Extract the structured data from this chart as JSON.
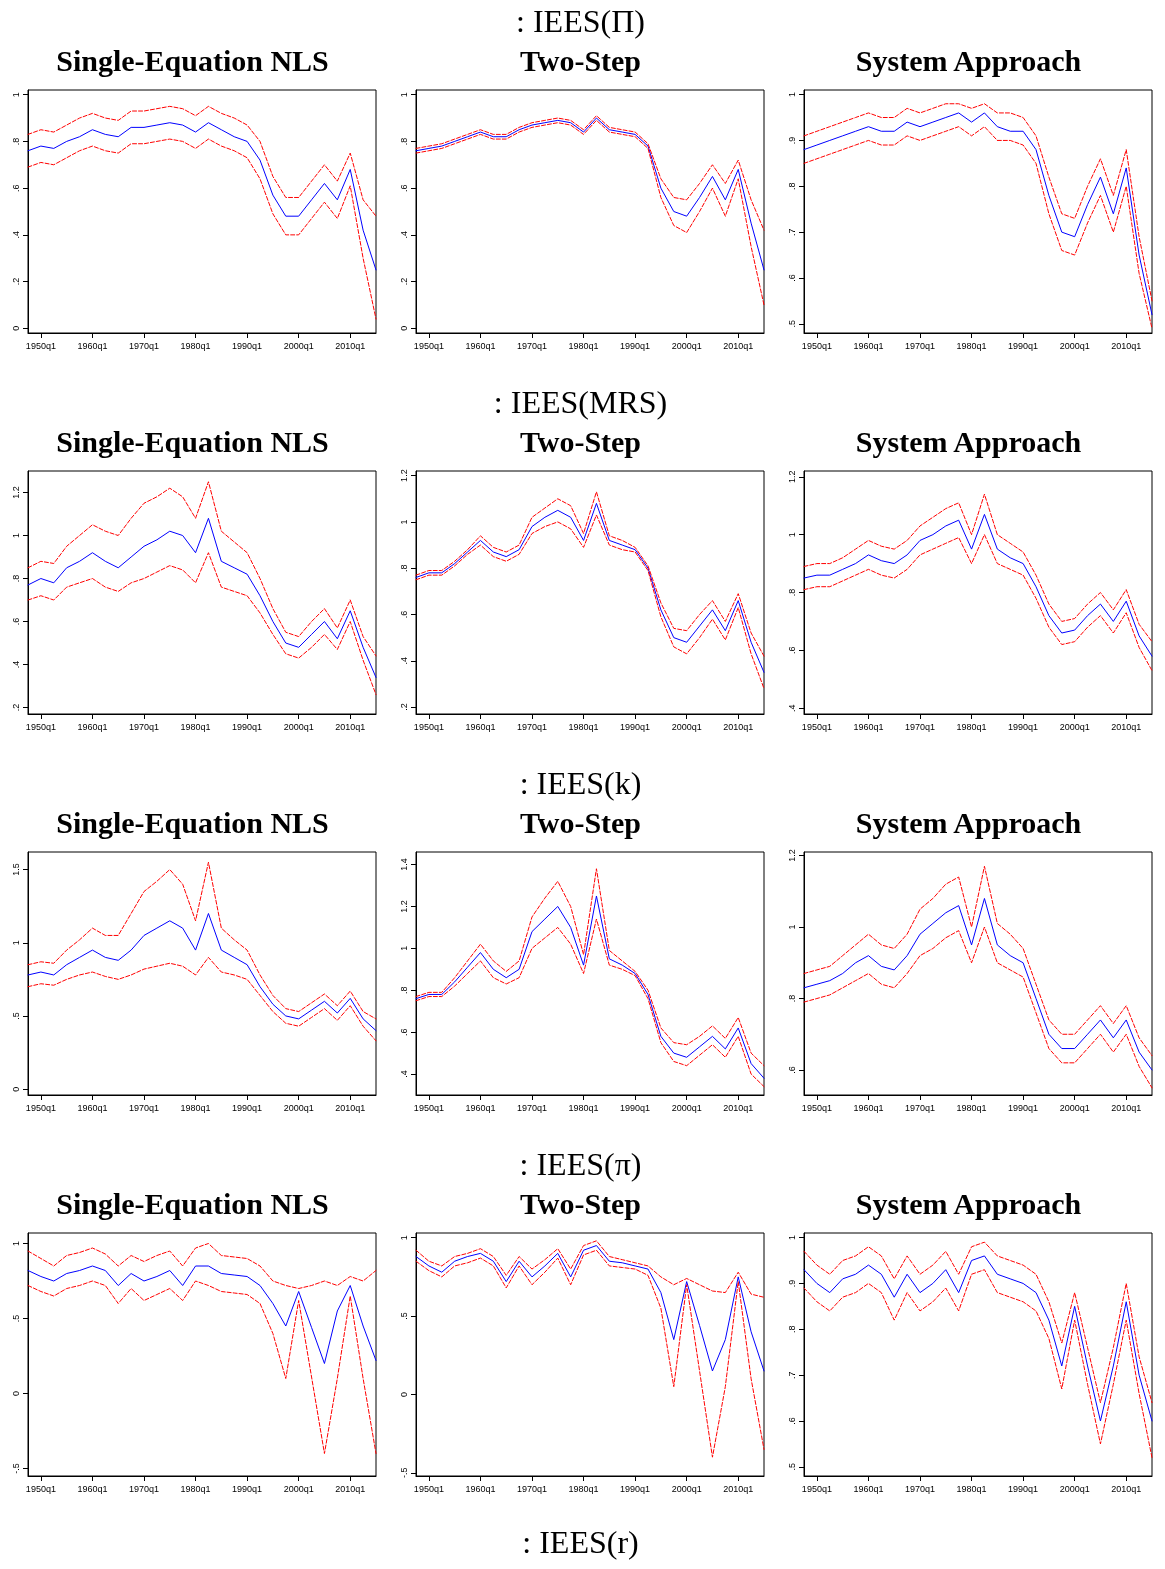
{
  "chart_data": [
    {
      "type": "line",
      "title": "Single-Equation NLS",
      "marker": "none",
      "grid": false,
      "ylim": [
        -0.02,
        1.02
      ],
      "categories": [
        null,
        "1950q1",
        null,
        null,
        null,
        "1960q1",
        null,
        null,
        null,
        "1970q1",
        null,
        null,
        null,
        "1980q1",
        null,
        null,
        null,
        "1990q1",
        null,
        null,
        null,
        "2000q1",
        null,
        null,
        null,
        "2010q1",
        null,
        null
      ],
      "yticks": [
        0,
        {
          "value": 0.2,
          "label": ".2"
        },
        {
          "value": 0.4,
          "label": ".4"
        },
        {
          "value": 0.6,
          "label": ".6"
        },
        {
          "value": 0.8,
          "label": ".8"
        },
        1
      ],
      "series": [
        {
          "color": "#0000ff",
          "line_style": "solid",
          "values": [
            0.76,
            0.78,
            0.77,
            0.8,
            0.82,
            0.85,
            0.83,
            0.82,
            0.86,
            0.86,
            0.87,
            0.88,
            0.87,
            0.84,
            0.88,
            0.85,
            0.82,
            0.8,
            0.72,
            0.57,
            0.48,
            0.48,
            0.55,
            0.62,
            0.55,
            0.68,
            0.42,
            0.25
          ]
        },
        {
          "color": "#ff0000",
          "line_style": "dashed",
          "values": [
            0.83,
            0.85,
            0.84,
            0.87,
            0.9,
            0.92,
            0.9,
            0.89,
            0.93,
            0.93,
            0.94,
            0.95,
            0.94,
            0.91,
            0.95,
            0.92,
            0.9,
            0.87,
            0.8,
            0.65,
            0.56,
            0.56,
            0.63,
            0.7,
            0.63,
            0.75,
            0.55,
            0.48
          ]
        },
        {
          "color": "#ff0000",
          "line_style": "dashed",
          "values": [
            0.69,
            0.71,
            0.7,
            0.73,
            0.76,
            0.78,
            0.76,
            0.75,
            0.79,
            0.79,
            0.8,
            0.81,
            0.8,
            0.77,
            0.81,
            0.78,
            0.76,
            0.73,
            0.64,
            0.49,
            0.4,
            0.4,
            0.47,
            0.54,
            0.47,
            0.61,
            0.3,
            0.04
          ]
        }
      ]
    },
    {
      "type": "line",
      "title": "Two-Step",
      "annotations": [
        ": IEES(Π)"
      ],
      "marker": "none",
      "grid": false,
      "ylim": [
        -0.02,
        1.02
      ],
      "categories": [
        null,
        "1950q1",
        null,
        null,
        null,
        "1960q1",
        null,
        null,
        null,
        "1970q1",
        null,
        null,
        null,
        "1980q1",
        null,
        null,
        null,
        "1990q1",
        null,
        null,
        null,
        "2000q1",
        null,
        null,
        null,
        "2010q1",
        null,
        null
      ],
      "yticks": [
        0,
        {
          "value": 0.2,
          "label": ".2"
        },
        {
          "value": 0.4,
          "label": ".4"
        },
        {
          "value": 0.6,
          "label": ".6"
        },
        {
          "value": 0.8,
          "label": ".8"
        },
        1
      ],
      "series": [
        {
          "color": "#0000ff",
          "line_style": "solid",
          "values": [
            0.76,
            0.77,
            0.78,
            0.8,
            0.82,
            0.84,
            0.82,
            0.82,
            0.85,
            0.87,
            0.88,
            0.89,
            0.88,
            0.84,
            0.9,
            0.85,
            0.84,
            0.83,
            0.78,
            0.6,
            0.5,
            0.48,
            0.56,
            0.65,
            0.55,
            0.68,
            0.45,
            0.25
          ]
        },
        {
          "color": "#ff0000",
          "line_style": "dashed",
          "values": [
            0.77,
            0.78,
            0.79,
            0.81,
            0.83,
            0.85,
            0.83,
            0.83,
            0.86,
            0.88,
            0.89,
            0.9,
            0.89,
            0.85,
            0.91,
            0.86,
            0.85,
            0.84,
            0.79,
            0.64,
            0.56,
            0.55,
            0.62,
            0.7,
            0.62,
            0.72,
            0.55,
            0.42
          ]
        },
        {
          "color": "#ff0000",
          "line_style": "dashed",
          "values": [
            0.75,
            0.76,
            0.77,
            0.79,
            0.81,
            0.83,
            0.81,
            0.81,
            0.84,
            0.86,
            0.87,
            0.88,
            0.87,
            0.83,
            0.89,
            0.84,
            0.83,
            0.82,
            0.77,
            0.56,
            0.44,
            0.41,
            0.5,
            0.6,
            0.48,
            0.64,
            0.35,
            0.1
          ]
        }
      ]
    },
    {
      "type": "line",
      "title": "System Approach",
      "marker": "none",
      "grid": false,
      "ylim": [
        0.48,
        1.01
      ],
      "categories": [
        null,
        "1950q1",
        null,
        null,
        null,
        "1960q1",
        null,
        null,
        null,
        "1970q1",
        null,
        null,
        null,
        "1980q1",
        null,
        null,
        null,
        "1990q1",
        null,
        null,
        null,
        "2000q1",
        null,
        null,
        null,
        "2010q1",
        null,
        null
      ],
      "yticks": [
        {
          "value": 0.5,
          "label": ".5"
        },
        {
          "value": 0.6,
          "label": ".6"
        },
        {
          "value": 0.7,
          "label": ".7"
        },
        {
          "value": 0.8,
          "label": ".8"
        },
        {
          "value": 0.9,
          "label": ".9"
        },
        1
      ],
      "series": [
        {
          "color": "#0000ff",
          "line_style": "solid",
          "values": [
            0.88,
            0.89,
            0.9,
            0.91,
            0.92,
            0.93,
            0.92,
            0.92,
            0.94,
            0.93,
            0.94,
            0.95,
            0.96,
            0.94,
            0.96,
            0.93,
            0.92,
            0.92,
            0.88,
            0.78,
            0.7,
            0.69,
            0.76,
            0.82,
            0.74,
            0.84,
            0.65,
            0.52
          ]
        },
        {
          "color": "#ff0000",
          "line_style": "dashed",
          "values": [
            0.91,
            0.92,
            0.93,
            0.94,
            0.95,
            0.96,
            0.95,
            0.95,
            0.97,
            0.96,
            0.97,
            0.98,
            0.98,
            0.97,
            0.98,
            0.96,
            0.96,
            0.95,
            0.91,
            0.82,
            0.74,
            0.73,
            0.8,
            0.86,
            0.78,
            0.88,
            0.69,
            0.55
          ]
        },
        {
          "color": "#ff0000",
          "line_style": "dashed",
          "values": [
            0.85,
            0.86,
            0.87,
            0.88,
            0.89,
            0.9,
            0.89,
            0.89,
            0.91,
            0.9,
            0.91,
            0.92,
            0.93,
            0.91,
            0.93,
            0.9,
            0.9,
            0.89,
            0.85,
            0.74,
            0.66,
            0.65,
            0.72,
            0.78,
            0.7,
            0.8,
            0.61,
            0.49
          ]
        }
      ]
    },
    {
      "type": "line",
      "title": "Single-Equation NLS",
      "marker": "none",
      "grid": false,
      "ylim": [
        0.17,
        1.3
      ],
      "categories": [
        null,
        "1950q1",
        null,
        null,
        null,
        "1960q1",
        null,
        null,
        null,
        "1970q1",
        null,
        null,
        null,
        "1980q1",
        null,
        null,
        null,
        "1990q1",
        null,
        null,
        null,
        "2000q1",
        null,
        null,
        null,
        "2010q1",
        null,
        null
      ],
      "yticks": [
        {
          "value": 0.2,
          "label": ".2"
        },
        {
          "value": 0.4,
          "label": ".4"
        },
        {
          "value": 0.6,
          "label": ".6"
        },
        {
          "value": 0.8,
          "label": ".8"
        },
        1,
        1.2
      ],
      "series": [
        {
          "color": "#0000ff",
          "line_style": "solid",
          "values": [
            0.77,
            0.8,
            0.78,
            0.85,
            0.88,
            0.92,
            0.88,
            0.85,
            0.9,
            0.95,
            0.98,
            1.02,
            1.0,
            0.92,
            1.08,
            0.88,
            0.85,
            0.82,
            0.72,
            0.6,
            0.5,
            0.48,
            0.54,
            0.6,
            0.52,
            0.65,
            0.48,
            0.34
          ]
        },
        {
          "color": "#ff0000",
          "line_style": "dashed",
          "values": [
            0.85,
            0.88,
            0.87,
            0.95,
            1.0,
            1.05,
            1.02,
            1.0,
            1.08,
            1.15,
            1.18,
            1.22,
            1.18,
            1.08,
            1.25,
            1.02,
            0.97,
            0.92,
            0.8,
            0.66,
            0.55,
            0.53,
            0.6,
            0.66,
            0.57,
            0.7,
            0.53,
            0.44
          ]
        },
        {
          "color": "#ff0000",
          "line_style": "dashed",
          "values": [
            0.7,
            0.72,
            0.7,
            0.76,
            0.78,
            0.8,
            0.76,
            0.74,
            0.78,
            0.8,
            0.83,
            0.86,
            0.84,
            0.78,
            0.92,
            0.76,
            0.74,
            0.72,
            0.64,
            0.54,
            0.45,
            0.43,
            0.48,
            0.54,
            0.47,
            0.6,
            0.42,
            0.26
          ]
        }
      ]
    },
    {
      "type": "line",
      "title": "Two-Step",
      "annotations": [
        ": IEES(MRS)"
      ],
      "marker": "none",
      "grid": false,
      "ylim": [
        0.17,
        1.22
      ],
      "categories": [
        null,
        "1950q1",
        null,
        null,
        null,
        "1960q1",
        null,
        null,
        null,
        "1970q1",
        null,
        null,
        null,
        "1980q1",
        null,
        null,
        null,
        "1990q1",
        null,
        null,
        null,
        "2000q1",
        null,
        null,
        null,
        "2010q1",
        null,
        null
      ],
      "yticks": [
        {
          "value": 0.2,
          "label": ".2"
        },
        {
          "value": 0.4,
          "label": ".4"
        },
        {
          "value": 0.6,
          "label": ".6"
        },
        {
          "value": 0.8,
          "label": ".8"
        },
        1,
        1.2
      ],
      "series": [
        {
          "color": "#0000ff",
          "line_style": "solid",
          "values": [
            0.76,
            0.78,
            0.78,
            0.82,
            0.87,
            0.92,
            0.87,
            0.85,
            0.88,
            0.98,
            1.02,
            1.05,
            1.02,
            0.92,
            1.08,
            0.92,
            0.9,
            0.88,
            0.8,
            0.62,
            0.5,
            0.48,
            0.55,
            0.62,
            0.53,
            0.66,
            0.48,
            0.35
          ]
        },
        {
          "color": "#ff0000",
          "line_style": "dashed",
          "values": [
            0.77,
            0.79,
            0.79,
            0.83,
            0.88,
            0.94,
            0.89,
            0.87,
            0.9,
            1.02,
            1.06,
            1.1,
            1.07,
            0.95,
            1.13,
            0.94,
            0.92,
            0.89,
            0.81,
            0.65,
            0.54,
            0.53,
            0.6,
            0.66,
            0.57,
            0.69,
            0.52,
            0.42
          ]
        },
        {
          "color": "#ff0000",
          "line_style": "dashed",
          "values": [
            0.75,
            0.77,
            0.77,
            0.81,
            0.86,
            0.9,
            0.85,
            0.83,
            0.86,
            0.95,
            0.98,
            1.0,
            0.97,
            0.89,
            1.03,
            0.9,
            0.88,
            0.87,
            0.79,
            0.59,
            0.46,
            0.43,
            0.5,
            0.58,
            0.49,
            0.63,
            0.43,
            0.28
          ]
        }
      ]
    },
    {
      "type": "line",
      "title": "System Approach",
      "marker": "none",
      "grid": false,
      "ylim": [
        0.38,
        1.22
      ],
      "categories": [
        null,
        "1950q1",
        null,
        null,
        null,
        "1960q1",
        null,
        null,
        null,
        "1970q1",
        null,
        null,
        null,
        "1980q1",
        null,
        null,
        null,
        "1990q1",
        null,
        null,
        null,
        "2000q1",
        null,
        null,
        null,
        "2010q1",
        null,
        null
      ],
      "yticks": [
        {
          "value": 0.4,
          "label": ".4"
        },
        {
          "value": 0.6,
          "label": ".6"
        },
        {
          "value": 0.8,
          "label": ".8"
        },
        1,
        1.2
      ],
      "series": [
        {
          "color": "#0000ff",
          "line_style": "solid",
          "values": [
            0.85,
            0.86,
            0.86,
            0.88,
            0.9,
            0.93,
            0.91,
            0.9,
            0.93,
            0.98,
            1.0,
            1.03,
            1.05,
            0.95,
            1.07,
            0.95,
            0.92,
            0.9,
            0.82,
            0.72,
            0.66,
            0.67,
            0.72,
            0.76,
            0.7,
            0.77,
            0.65,
            0.58
          ]
        },
        {
          "color": "#ff0000",
          "line_style": "dashed",
          "values": [
            0.89,
            0.9,
            0.9,
            0.92,
            0.95,
            0.98,
            0.96,
            0.95,
            0.98,
            1.03,
            1.06,
            1.09,
            1.11,
            1.0,
            1.14,
            1.0,
            0.97,
            0.94,
            0.86,
            0.76,
            0.7,
            0.71,
            0.76,
            0.8,
            0.74,
            0.81,
            0.69,
            0.63
          ]
        },
        {
          "color": "#ff0000",
          "line_style": "dashed",
          "values": [
            0.81,
            0.82,
            0.82,
            0.84,
            0.86,
            0.88,
            0.86,
            0.85,
            0.88,
            0.93,
            0.95,
            0.97,
            0.99,
            0.9,
            1.0,
            0.9,
            0.88,
            0.86,
            0.78,
            0.68,
            0.62,
            0.63,
            0.68,
            0.72,
            0.66,
            0.73,
            0.61,
            0.53
          ]
        }
      ]
    },
    {
      "type": "line",
      "title": "Single-Equation NLS",
      "marker": "none",
      "grid": false,
      "ylim": [
        -0.04,
        1.62
      ],
      "categories": [
        null,
        "1950q1",
        null,
        null,
        null,
        "1960q1",
        null,
        null,
        null,
        "1970q1",
        null,
        null,
        null,
        "1980q1",
        null,
        null,
        null,
        "1990q1",
        null,
        null,
        null,
        "2000q1",
        null,
        null,
        null,
        "2010q1",
        null,
        null
      ],
      "yticks": [
        0,
        {
          "value": 0.5,
          "label": ".5"
        },
        1,
        1.5
      ],
      "series": [
        {
          "color": "#0000ff",
          "line_style": "solid",
          "values": [
            0.78,
            0.8,
            0.78,
            0.85,
            0.9,
            0.95,
            0.9,
            0.88,
            0.95,
            1.05,
            1.1,
            1.15,
            1.1,
            0.95,
            1.2,
            0.95,
            0.9,
            0.85,
            0.7,
            0.58,
            0.5,
            0.48,
            0.54,
            0.6,
            0.52,
            0.62,
            0.48,
            0.4
          ]
        },
        {
          "color": "#ff0000",
          "line_style": "dashed",
          "values": [
            0.85,
            0.87,
            0.86,
            0.95,
            1.02,
            1.1,
            1.05,
            1.05,
            1.2,
            1.35,
            1.42,
            1.5,
            1.4,
            1.15,
            1.55,
            1.1,
            1.02,
            0.95,
            0.78,
            0.64,
            0.55,
            0.53,
            0.59,
            0.65,
            0.57,
            0.67,
            0.53,
            0.48
          ]
        },
        {
          "color": "#ff0000",
          "line_style": "dashed",
          "values": [
            0.7,
            0.72,
            0.71,
            0.75,
            0.78,
            0.8,
            0.77,
            0.75,
            0.78,
            0.82,
            0.84,
            0.86,
            0.84,
            0.78,
            0.9,
            0.8,
            0.78,
            0.75,
            0.64,
            0.53,
            0.45,
            0.43,
            0.49,
            0.55,
            0.47,
            0.57,
            0.43,
            0.33
          ]
        }
      ]
    },
    {
      "type": "line",
      "title": "Two-Step",
      "annotations": [
        ": IEES(k)"
      ],
      "marker": "none",
      "grid": false,
      "ylim": [
        0.3,
        1.46
      ],
      "categories": [
        null,
        "1950q1",
        null,
        null,
        null,
        "1960q1",
        null,
        null,
        null,
        "1970q1",
        null,
        null,
        null,
        "1980q1",
        null,
        null,
        null,
        "1990q1",
        null,
        null,
        null,
        "2000q1",
        null,
        null,
        null,
        "2010q1",
        null,
        null
      ],
      "yticks": [
        {
          "value": 0.4,
          "label": ".4"
        },
        {
          "value": 0.6,
          "label": ".6"
        },
        {
          "value": 0.8,
          "label": ".8"
        },
        1,
        1.2,
        1.4
      ],
      "series": [
        {
          "color": "#0000ff",
          "line_style": "solid",
          "values": [
            0.76,
            0.78,
            0.78,
            0.84,
            0.91,
            0.98,
            0.9,
            0.86,
            0.9,
            1.08,
            1.14,
            1.2,
            1.1,
            0.92,
            1.25,
            0.95,
            0.92,
            0.88,
            0.78,
            0.58,
            0.5,
            0.48,
            0.53,
            0.58,
            0.52,
            0.62,
            0.45,
            0.38
          ]
        },
        {
          "color": "#ff0000",
          "line_style": "dashed",
          "values": [
            0.77,
            0.79,
            0.79,
            0.86,
            0.94,
            1.02,
            0.94,
            0.89,
            0.94,
            1.15,
            1.24,
            1.32,
            1.2,
            0.97,
            1.38,
            0.99,
            0.94,
            0.89,
            0.8,
            0.62,
            0.55,
            0.54,
            0.58,
            0.63,
            0.57,
            0.67,
            0.5,
            0.44
          ]
        },
        {
          "color": "#ff0000",
          "line_style": "dashed",
          "values": [
            0.75,
            0.77,
            0.77,
            0.82,
            0.88,
            0.94,
            0.86,
            0.83,
            0.86,
            1.0,
            1.05,
            1.1,
            1.02,
            0.88,
            1.14,
            0.92,
            0.9,
            0.87,
            0.76,
            0.55,
            0.46,
            0.44,
            0.49,
            0.54,
            0.48,
            0.58,
            0.4,
            0.34
          ]
        }
      ]
    },
    {
      "type": "line",
      "title": "System Approach",
      "marker": "none",
      "grid": false,
      "ylim": [
        0.53,
        1.21
      ],
      "categories": [
        null,
        "1950q1",
        null,
        null,
        null,
        "1960q1",
        null,
        null,
        null,
        "1970q1",
        null,
        null,
        null,
        "1980q1",
        null,
        null,
        null,
        "1990q1",
        null,
        null,
        null,
        "2000q1",
        null,
        null,
        null,
        "2010q1",
        null,
        null
      ],
      "yticks": [
        {
          "value": 0.6,
          "label": ".6"
        },
        {
          "value": 0.8,
          "label": ".8"
        },
        1,
        1.2
      ],
      "series": [
        {
          "color": "#0000ff",
          "line_style": "solid",
          "values": [
            0.83,
            0.84,
            0.85,
            0.87,
            0.9,
            0.92,
            0.89,
            0.88,
            0.92,
            0.98,
            1.01,
            1.04,
            1.06,
            0.95,
            1.08,
            0.95,
            0.92,
            0.9,
            0.8,
            0.7,
            0.66,
            0.66,
            0.7,
            0.74,
            0.69,
            0.74,
            0.65,
            0.6
          ]
        },
        {
          "color": "#ff0000",
          "line_style": "dashed",
          "values": [
            0.87,
            0.88,
            0.89,
            0.92,
            0.95,
            0.98,
            0.95,
            0.94,
            0.98,
            1.05,
            1.08,
            1.12,
            1.14,
            1.0,
            1.17,
            1.01,
            0.98,
            0.94,
            0.84,
            0.74,
            0.7,
            0.7,
            0.74,
            0.78,
            0.73,
            0.78,
            0.69,
            0.64
          ]
        },
        {
          "color": "#ff0000",
          "line_style": "dashed",
          "values": [
            0.79,
            0.8,
            0.81,
            0.83,
            0.85,
            0.87,
            0.84,
            0.83,
            0.87,
            0.92,
            0.94,
            0.97,
            0.99,
            0.9,
            1.0,
            0.9,
            0.88,
            0.86,
            0.76,
            0.66,
            0.62,
            0.62,
            0.66,
            0.7,
            0.65,
            0.7,
            0.61,
            0.55
          ]
        }
      ]
    },
    {
      "type": "line",
      "title": "Single-Equation NLS",
      "marker": "none",
      "grid": false,
      "ylim": [
        -0.55,
        1.07
      ],
      "categories": [
        null,
        "1950q1",
        null,
        null,
        null,
        "1960q1",
        null,
        null,
        null,
        "1970q1",
        null,
        null,
        null,
        "1980q1",
        null,
        null,
        null,
        "1990q1",
        null,
        null,
        null,
        "2000q1",
        null,
        null,
        null,
        "2010q1",
        null,
        null
      ],
      "yticks": [
        {
          "value": -0.5,
          "label": "-.5"
        },
        0,
        {
          "value": 0.5,
          "label": ".5"
        },
        1
      ],
      "series": [
        {
          "color": "#0000ff",
          "line_style": "solid",
          "values": [
            0.82,
            0.78,
            0.75,
            0.8,
            0.82,
            0.85,
            0.82,
            0.72,
            0.8,
            0.75,
            0.78,
            0.82,
            0.72,
            0.85,
            0.85,
            0.8,
            0.79,
            0.78,
            0.72,
            0.6,
            0.45,
            0.68,
            0.44,
            0.2,
            0.55,
            0.72,
            0.45,
            0.22
          ]
        },
        {
          "color": "#ff0000",
          "line_style": "dashed",
          "values": [
            0.95,
            0.9,
            0.85,
            0.92,
            0.94,
            0.97,
            0.93,
            0.85,
            0.92,
            0.88,
            0.92,
            0.95,
            0.85,
            0.97,
            1.0,
            0.92,
            0.91,
            0.9,
            0.85,
            0.75,
            0.72,
            0.7,
            0.72,
            0.75,
            0.72,
            0.78,
            0.75,
            0.82
          ]
        },
        {
          "color": "#ff0000",
          "line_style": "dashed",
          "values": [
            0.72,
            0.68,
            0.65,
            0.7,
            0.72,
            0.75,
            0.72,
            0.6,
            0.7,
            0.62,
            0.66,
            0.7,
            0.62,
            0.75,
            0.72,
            0.68,
            0.67,
            0.66,
            0.6,
            0.4,
            0.1,
            0.62,
            0.11,
            -0.4,
            0.1,
            0.65,
            0.1,
            -0.4
          ]
        }
      ]
    },
    {
      "type": "line",
      "title": "Two-Step",
      "annotations": [
        ": IEES(π)",
        ": IEES(r)"
      ],
      "marker": "none",
      "grid": false,
      "ylim": [
        -0.52,
        1.03
      ],
      "categories": [
        null,
        "1950q1",
        null,
        null,
        null,
        "1960q1",
        null,
        null,
        null,
        "1970q1",
        null,
        null,
        null,
        "1980q1",
        null,
        null,
        null,
        "1990q1",
        null,
        null,
        null,
        "2000q1",
        null,
        null,
        null,
        "2010q1",
        null,
        null
      ],
      "yticks": [
        {
          "value": -0.5,
          "label": "-.5"
        },
        0,
        {
          "value": 0.5,
          "label": ".5"
        },
        1
      ],
      "series": [
        {
          "color": "#0000ff",
          "line_style": "solid",
          "values": [
            0.88,
            0.82,
            0.78,
            0.85,
            0.88,
            0.9,
            0.85,
            0.72,
            0.85,
            0.75,
            0.82,
            0.9,
            0.75,
            0.92,
            0.95,
            0.85,
            0.84,
            0.82,
            0.8,
            0.65,
            0.35,
            0.72,
            0.44,
            0.15,
            0.35,
            0.75,
            0.4,
            0.15
          ]
        },
        {
          "color": "#ff0000",
          "line_style": "dashed",
          "values": [
            0.92,
            0.85,
            0.82,
            0.88,
            0.9,
            0.93,
            0.88,
            0.76,
            0.88,
            0.8,
            0.86,
            0.93,
            0.8,
            0.95,
            0.98,
            0.88,
            0.86,
            0.84,
            0.82,
            0.75,
            0.7,
            0.74,
            0.7,
            0.66,
            0.65,
            0.78,
            0.64,
            0.62
          ]
        },
        {
          "color": "#ff0000",
          "line_style": "dashed",
          "values": [
            0.85,
            0.79,
            0.75,
            0.82,
            0.84,
            0.87,
            0.82,
            0.68,
            0.82,
            0.7,
            0.78,
            0.87,
            0.7,
            0.89,
            0.92,
            0.82,
            0.81,
            0.8,
            0.76,
            0.55,
            0.05,
            0.7,
            0.15,
            -0.4,
            0.05,
            0.72,
            0.1,
            -0.35
          ]
        }
      ]
    },
    {
      "type": "line",
      "title": "System Approach",
      "marker": "none",
      "grid": false,
      "ylim": [
        0.48,
        1.01
      ],
      "categories": [
        null,
        "1950q1",
        null,
        null,
        null,
        "1960q1",
        null,
        null,
        null,
        "1970q1",
        null,
        null,
        null,
        "1980q1",
        null,
        null,
        null,
        "1990q1",
        null,
        null,
        null,
        "2000q1",
        null,
        null,
        null,
        "2010q1",
        null,
        null
      ],
      "yticks": [
        {
          "value": 0.5,
          "label": ".5"
        },
        {
          "value": 0.6,
          "label": ".6"
        },
        {
          "value": 0.7,
          "label": ".7"
        },
        {
          "value": 0.8,
          "label": ".8"
        },
        {
          "value": 0.9,
          "label": ".9"
        },
        1
      ],
      "series": [
        {
          "color": "#0000ff",
          "line_style": "solid",
          "values": [
            0.93,
            0.9,
            0.88,
            0.91,
            0.92,
            0.94,
            0.92,
            0.87,
            0.92,
            0.88,
            0.9,
            0.93,
            0.88,
            0.95,
            0.96,
            0.92,
            0.91,
            0.9,
            0.88,
            0.82,
            0.72,
            0.85,
            0.72,
            0.6,
            0.72,
            0.86,
            0.7,
            0.6
          ]
        },
        {
          "color": "#ff0000",
          "line_style": "dashed",
          "values": [
            0.97,
            0.94,
            0.92,
            0.95,
            0.96,
            0.98,
            0.96,
            0.91,
            0.96,
            0.92,
            0.94,
            0.97,
            0.92,
            0.98,
            0.99,
            0.96,
            0.95,
            0.94,
            0.92,
            0.86,
            0.77,
            0.88,
            0.76,
            0.64,
            0.76,
            0.9,
            0.74,
            0.64
          ]
        },
        {
          "color": "#ff0000",
          "line_style": "dashed",
          "values": [
            0.89,
            0.86,
            0.84,
            0.87,
            0.88,
            0.9,
            0.88,
            0.82,
            0.88,
            0.84,
            0.86,
            0.89,
            0.84,
            0.92,
            0.93,
            0.88,
            0.87,
            0.86,
            0.84,
            0.78,
            0.67,
            0.82,
            0.68,
            0.55,
            0.68,
            0.82,
            0.66,
            0.52
          ]
        }
      ]
    }
  ]
}
